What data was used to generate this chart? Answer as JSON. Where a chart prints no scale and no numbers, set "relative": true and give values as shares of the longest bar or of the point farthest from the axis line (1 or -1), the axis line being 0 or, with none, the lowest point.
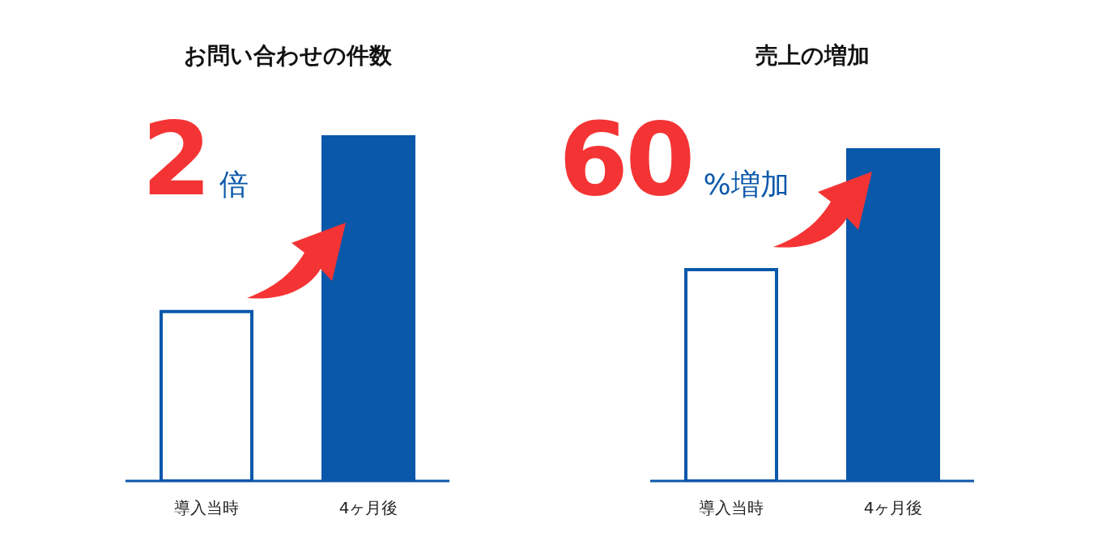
{
  "chart_data": [
    {
      "type": "bar",
      "title": "お問い合わせの件数",
      "categories": [
        "導入当時",
        "4ヶ月後"
      ],
      "values": [
        0.49,
        1
      ],
      "color": "#0a58aa",
      "colors": [
        "#ffffff",
        "#0a58aa"
      ],
      "relative": true,
      "annotations": [
        "2",
        "倍"
      ]
    },
    {
      "type": "bar",
      "title": "売上の増加",
      "categories": [
        "導入当時",
        "4ヶ月後"
      ],
      "values": [
        0.635,
        1
      ],
      "color": "#0a58aa",
      "colors": [
        "#ffffff",
        "#0a58aa"
      ],
      "relative": true,
      "annotations": [
        "60",
        "%増加"
      ]
    }
  ]
}
